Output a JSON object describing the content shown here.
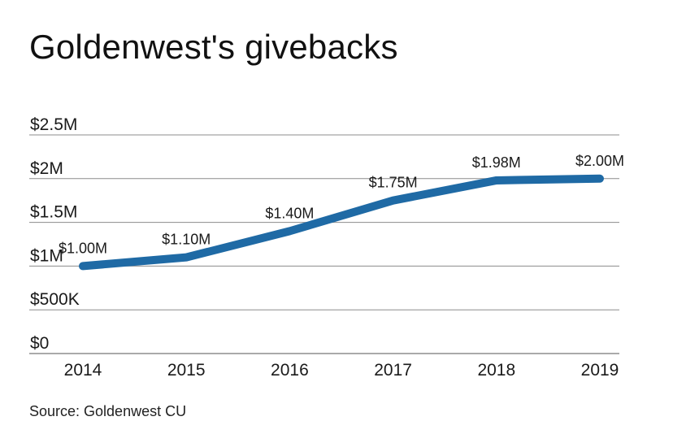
{
  "chart_data": {
    "type": "line",
    "title": "Goldenwest's givebacks",
    "xlabel": "",
    "ylabel": "",
    "x": [
      "2014",
      "2015",
      "2016",
      "2017",
      "2018",
      "2019"
    ],
    "series": [
      {
        "values": [
          1.0,
          1.1,
          1.4,
          1.75,
          1.98,
          2.0
        ],
        "labels": [
          "$1.00M",
          "$1.10M",
          "$1.40M",
          "$1.75M",
          "$1.98M",
          "$2.00M"
        ]
      }
    ],
    "ylim": [
      0,
      2.5
    ],
    "yticks": [
      0,
      0.5,
      1,
      1.5,
      2,
      2.5
    ],
    "ytick_labels": [
      "$0",
      "$500K",
      "$1M",
      "$1.5M",
      "$2M",
      "$2.5M"
    ],
    "grid": true,
    "line_color": "#1f6aa5",
    "source": "Source: Goldenwest CU"
  }
}
